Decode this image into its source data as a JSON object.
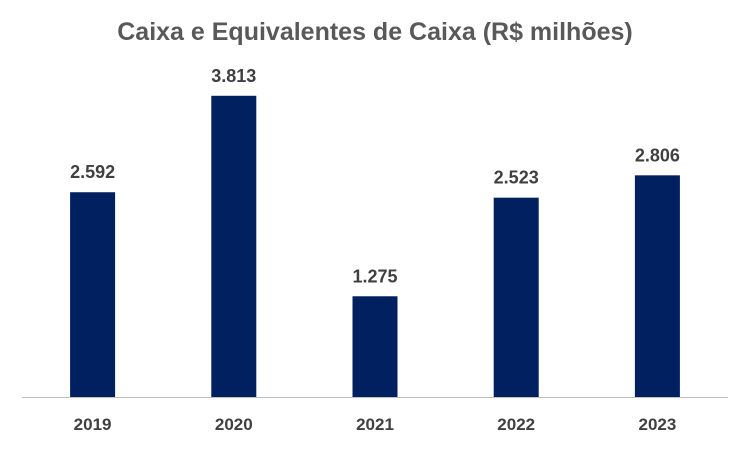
{
  "chart_data": {
    "type": "bar",
    "title": "Caixa e Equivalentes de Caixa (R$ milhões)",
    "xlabel": "",
    "ylabel": "",
    "categories": [
      "2019",
      "2020",
      "2021",
      "2022",
      "2023"
    ],
    "values": [
      2592,
      3813,
      1275,
      2523,
      2806
    ],
    "data_labels": [
      "2.592",
      "3.813",
      "1.275",
      "2.523",
      "2.806"
    ],
    "ylim": [
      0,
      4000
    ],
    "grid": false,
    "legend": "none",
    "bar_color": "#002060",
    "axis_color": "#bfbfbf"
  }
}
